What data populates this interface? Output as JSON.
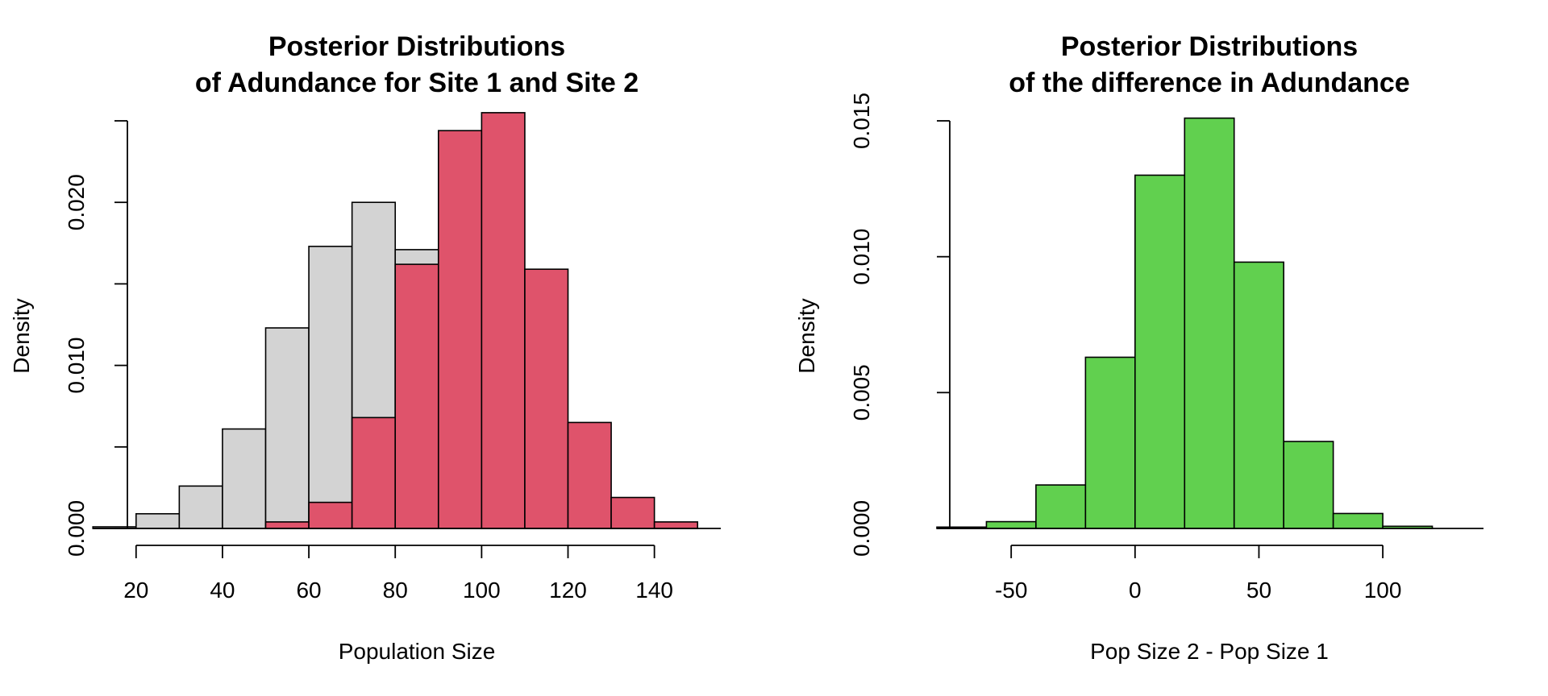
{
  "chart_data": [
    {
      "type": "histogram",
      "title_lines": [
        "Posterior Distributions",
        "of Adundance for Site 1 and Site 2"
      ],
      "xlabel": "Population Size",
      "ylabel": "Density",
      "xlim": [
        15,
        155
      ],
      "ylim": [
        0,
        0.025
      ],
      "x_ticks": [
        20,
        40,
        60,
        80,
        100,
        120,
        140
      ],
      "x_tick_labels": [
        "20",
        "40",
        "60",
        "80",
        "100",
        "120",
        "140"
      ],
      "y_ticks": [
        0,
        0.005,
        0.01,
        0.015,
        0.02,
        0.025
      ],
      "y_tick_labels": [
        "0.000",
        "",
        "0.010",
        "",
        "0.020",
        ""
      ],
      "series": [
        {
          "color": "#d3d3d3",
          "bin_edges": [
            10,
            20,
            30,
            40,
            50,
            60,
            70,
            80,
            90
          ],
          "values": [
            0.0001,
            0.0009,
            0.0026,
            0.0061,
            0.0123,
            0.0173,
            0.02,
            0.0171
          ]
        },
        {
          "color": "#df536b",
          "bin_edges": [
            50,
            60,
            70,
            80,
            90,
            100,
            110,
            120,
            130,
            140,
            150
          ],
          "values": [
            0.0004,
            0.0016,
            0.0068,
            0.0162,
            0.0244,
            0.0255,
            0.0159,
            0.0065,
            0.0019,
            0.0004
          ]
        }
      ]
    },
    {
      "type": "histogram",
      "title_lines": [
        "Posterior Distributions",
        "of the difference in Adundance"
      ],
      "xlabel": "Pop Size 2 - Pop Size 1",
      "ylabel": "Density",
      "xlim": [
        -80,
        140
      ],
      "ylim": [
        0,
        0.015
      ],
      "x_ticks": [
        -50,
        0,
        50,
        100
      ],
      "x_tick_labels": [
        "-50",
        "0",
        "50",
        "100"
      ],
      "y_ticks": [
        0,
        0.005,
        0.01,
        0.015
      ],
      "y_tick_labels": [
        "0.000",
        "0.005",
        "0.010",
        "0.015"
      ],
      "series": [
        {
          "color": "#61d04f",
          "bin_edges": [
            -80,
            -60,
            -40,
            -20,
            0,
            20,
            40,
            60,
            80,
            100,
            120
          ],
          "values": [
            5e-05,
            0.00025,
            0.0016,
            0.0063,
            0.013,
            0.0151,
            0.0098,
            0.0032,
            0.00055,
            8e-05
          ]
        }
      ]
    }
  ]
}
